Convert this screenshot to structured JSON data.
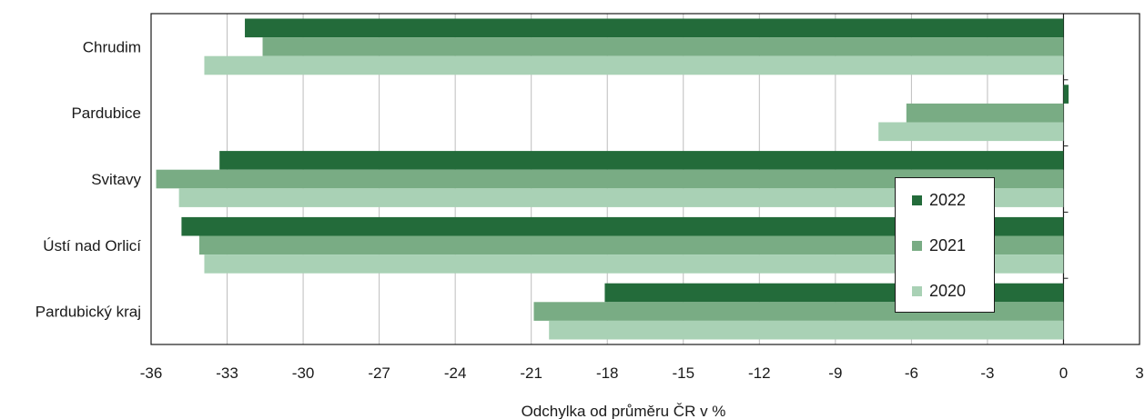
{
  "chart_data": {
    "type": "bar",
    "orientation": "horizontal",
    "categories": [
      "Chrudim",
      "Pardubice",
      "Svitavy",
      "Ústí nad Orlicí",
      "Pardubický kraj"
    ],
    "series": [
      {
        "name": "2022",
        "color": "#236b3a",
        "values": [
          -32.3,
          0.2,
          -33.3,
          -34.8,
          -18.1
        ]
      },
      {
        "name": "2021",
        "color": "#79ac84",
        "values": [
          -31.6,
          -6.2,
          -35.8,
          -34.1,
          -20.9
        ]
      },
      {
        "name": "2020",
        "color": "#a9d1b5",
        "values": [
          -33.9,
          -7.3,
          -34.9,
          -33.9,
          -20.3
        ]
      }
    ],
    "xlabel": "Odchylka od průměru ČR v %",
    "xlim": [
      -36,
      3
    ],
    "xticks": [
      "-36",
      "-33",
      "-30",
      "-27",
      "-24",
      "-21",
      "-18",
      "-15",
      "-12",
      "-9",
      "-6",
      "-3",
      "0",
      "3"
    ],
    "grid": "vertical",
    "legend_position": "inside-right"
  }
}
